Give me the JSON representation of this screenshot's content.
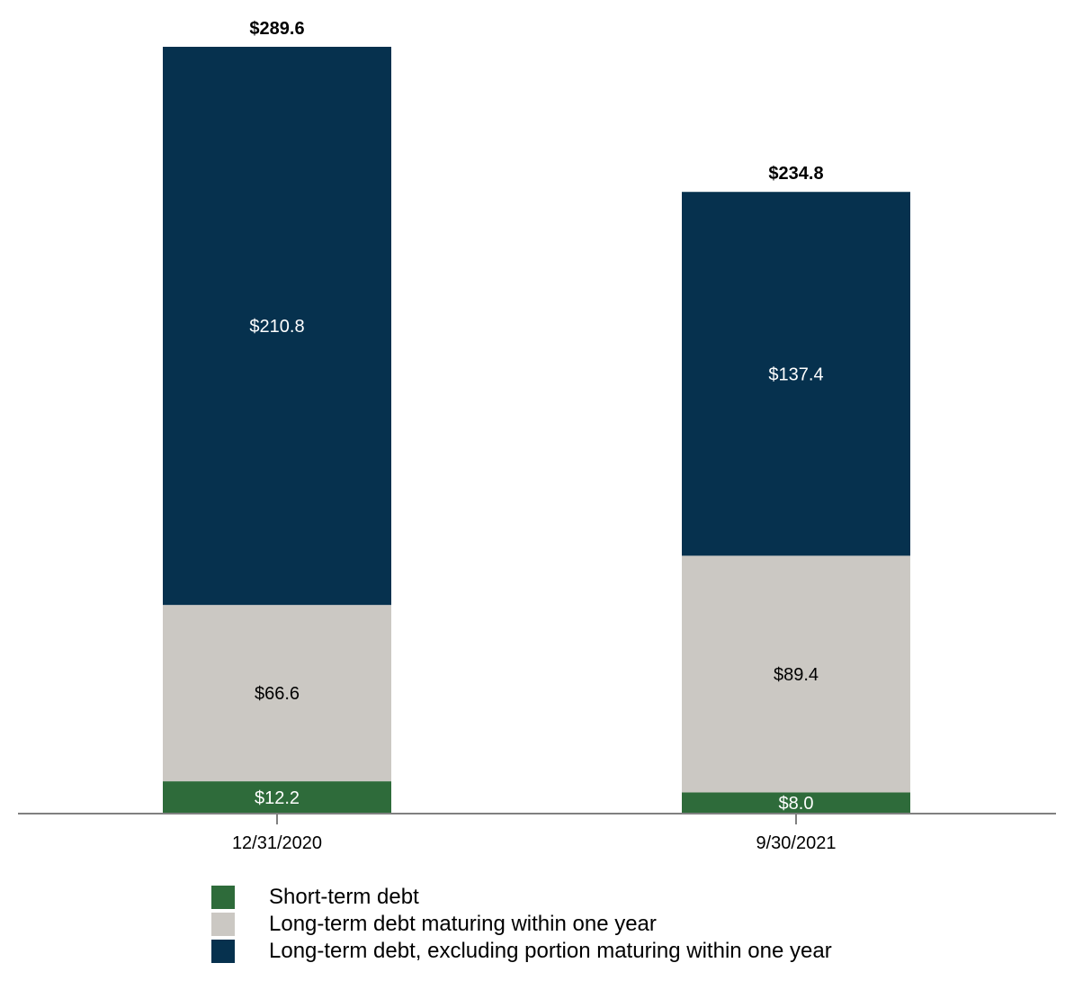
{
  "chart_data": {
    "type": "bar",
    "stacked": true,
    "categories": [
      "12/31/2020",
      "9/30/2021"
    ],
    "series": [
      {
        "name": "Short-term debt",
        "values": [
          12.2,
          8.0
        ],
        "labels": [
          "$12.2",
          "$8.0"
        ],
        "color": "#2e6b3a",
        "label_color": "#ffffff"
      },
      {
        "name": "Long-term debt maturing within one year",
        "values": [
          66.6,
          89.4
        ],
        "labels": [
          "$66.6",
          "$89.4"
        ],
        "color": "#cbc8c3",
        "label_color": "#000000"
      },
      {
        "name": "Long-term debt, excluding portion maturing within one year",
        "values": [
          210.8,
          137.4
        ],
        "labels": [
          "$210.8",
          "$137.4"
        ],
        "color": "#06314e",
        "label_color": "#ffffff"
      }
    ],
    "totals": [
      289.6,
      234.8
    ],
    "total_labels": [
      "$289.6",
      "$234.8"
    ],
    "ylim": [
      0,
      289.6
    ],
    "grid": false,
    "legend_position": "bottom",
    "axis_color": "#808080",
    "title": "",
    "xlabel": "",
    "ylabel": ""
  }
}
